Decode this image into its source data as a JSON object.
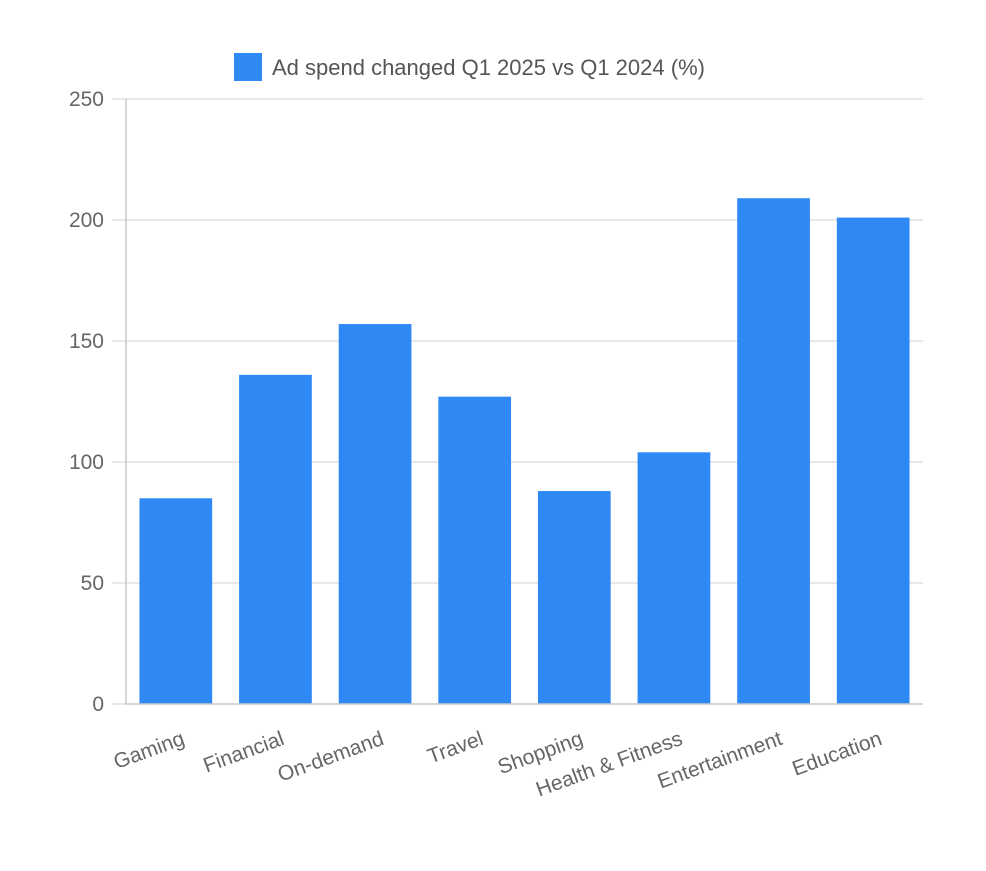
{
  "chart_data": {
    "type": "bar",
    "title": "",
    "xlabel": "",
    "ylabel": "",
    "categories": [
      "Gaming",
      "Financial",
      "On-demand",
      "Travel",
      "Shopping",
      "Health & Fitness",
      "Entertainment",
      "Education"
    ],
    "series": [
      {
        "name": "Ad spend changed Q1 2025 vs Q1 2024 (%)",
        "values": [
          85,
          136,
          157,
          127,
          88,
          104,
          209,
          201
        ],
        "color": "#2f89f5"
      }
    ],
    "ylim": [
      0,
      250
    ],
    "yticks": [
      0,
      50,
      100,
      150,
      200,
      250
    ],
    "grid": true,
    "legend_position": "top-center"
  }
}
